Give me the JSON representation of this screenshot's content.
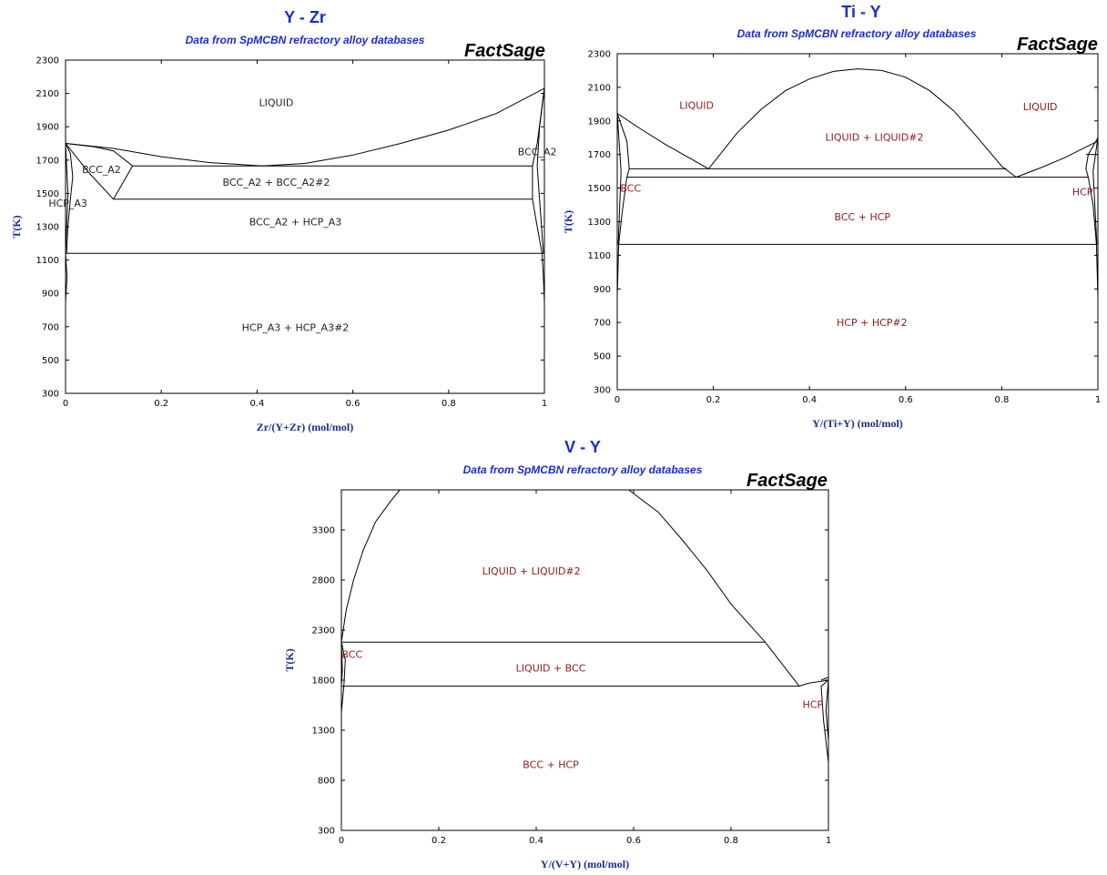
{
  "colors": {
    "title": "#1a2ccc",
    "axis_label": "#1a2c8c",
    "region_dark": "#222222",
    "region_red": "#8b1a1a"
  },
  "chart_data": [
    {
      "type": "phase-diagram",
      "title": "Y - Zr",
      "subtitle": "Data from SpMCBN refractory alloy databases",
      "brand": "FactSage",
      "xlabel": "Zr/(Y+Zr) (mol/mol)",
      "ylabel": "T(K)",
      "xlim": [
        0,
        1
      ],
      "ylim": [
        300,
        2300
      ],
      "xticks": [
        0,
        0.2,
        0.4,
        0.6,
        0.8,
        1
      ],
      "xtick_labels": [
        "0",
        "0.2",
        "0.4",
        "0.6",
        "0.8",
        "1"
      ],
      "yticks": [
        300,
        500,
        700,
        900,
        1100,
        1300,
        1500,
        1700,
        1900,
        2100,
        2300
      ],
      "regions": [
        {
          "label": "LIQUID",
          "x": 0.44,
          "y": 2045,
          "color": "#222222"
        },
        {
          "label": "BCC_A2",
          "x": 0.075,
          "y": 1645,
          "color": "#222222"
        },
        {
          "label": "BCC_A2",
          "x": 0.985,
          "y": 1750,
          "color": "#222222"
        },
        {
          "label": "BCC_A2 + BCC_A2#2",
          "x": 0.44,
          "y": 1568,
          "color": "#222222"
        },
        {
          "label": "HCP_A3",
          "x": 0.005,
          "y": 1442,
          "color": "#222222"
        },
        {
          "label": "BCC_A2 + HCP_A3",
          "x": 0.48,
          "y": 1330,
          "color": "#222222"
        },
        {
          "label": "HCP_A3 + HCP_A3#2",
          "x": 0.48,
          "y": 695,
          "color": "#222222"
        }
      ],
      "boundaries": [
        [
          [
            0,
            1800
          ],
          [
            0.1,
            1770
          ],
          [
            0.2,
            1720
          ],
          [
            0.3,
            1685
          ],
          [
            0.41,
            1665
          ],
          [
            0.5,
            1680
          ],
          [
            0.6,
            1730
          ],
          [
            0.7,
            1800
          ],
          [
            0.8,
            1880
          ],
          [
            0.9,
            1980
          ],
          [
            1,
            2130
          ]
        ],
        [
          [
            0,
            1800
          ],
          [
            0.06,
            1780
          ],
          [
            0.1,
            1755
          ],
          [
            0.14,
            1665
          ]
        ],
        [
          [
            0,
            1800
          ],
          [
            0.05,
            1620
          ],
          [
            0.1,
            1465
          ]
        ],
        [
          [
            0.1,
            1465
          ],
          [
            0.125,
            1590
          ],
          [
            0.14,
            1665
          ]
        ],
        [
          [
            0,
            1800
          ],
          [
            0.01,
            1740
          ],
          [
            0.015,
            1600
          ],
          [
            0.01,
            1465
          ],
          [
            0.005,
            1300
          ],
          [
            0.002,
            1140
          ]
        ],
        [
          [
            0,
            1800
          ],
          [
            0.005,
            1500
          ],
          [
            0,
            1140
          ]
        ],
        [
          [
            0,
            1140
          ],
          [
            0.003,
            1000
          ],
          [
            0,
            850
          ]
        ],
        [
          [
            1,
            2130
          ],
          [
            0.985,
            1800
          ],
          [
            0.975,
            1665
          ],
          [
            0.975,
            1465
          ],
          [
            0.985,
            1300
          ],
          [
            0.995,
            1140
          ]
        ],
        [
          [
            1,
            2130
          ],
          [
            0.99,
            1900
          ],
          [
            0.985,
            1665
          ],
          [
            0.99,
            1465
          ],
          [
            0.998,
            1140
          ]
        ],
        [
          [
            0.995,
            1140
          ],
          [
            0.998,
            1000
          ],
          [
            1,
            850
          ]
        ],
        [
          [
            0.14,
            1665
          ],
          [
            0.975,
            1665
          ]
        ],
        [
          [
            0.1,
            1465
          ],
          [
            0.975,
            1465
          ]
        ],
        [
          [
            0,
            1140
          ],
          [
            1,
            1140
          ]
        ]
      ]
    },
    {
      "type": "phase-diagram",
      "title": "Ti - Y",
      "subtitle": "Data from SpMCBN refractory alloy databases",
      "brand": "FactSage",
      "xlabel": "Y/(Ti+Y) (mol/mol)",
      "ylabel": "T(K)",
      "xlim": [
        0,
        1
      ],
      "ylim": [
        300,
        2300
      ],
      "xticks": [
        0,
        0.2,
        0.4,
        0.6,
        0.8,
        1
      ],
      "xtick_labels": [
        "0",
        "0.2",
        "0.4",
        "0.6",
        "0.8",
        "1"
      ],
      "yticks": [
        300,
        500,
        700,
        900,
        1100,
        1300,
        1500,
        1700,
        1900,
        2100,
        2300
      ],
      "regions": [
        {
          "label": "LIQUID",
          "x": 0.165,
          "y": 1995,
          "color": "#8b1a1a"
        },
        {
          "label": "LIQUID",
          "x": 0.88,
          "y": 1985,
          "color": "#8b1a1a"
        },
        {
          "label": "LIQUID + LIQUID#2",
          "x": 0.535,
          "y": 1805,
          "color": "#8b1a1a"
        },
        {
          "label": "BCC",
          "x": 0.028,
          "y": 1500,
          "color": "#8b1a1a"
        },
        {
          "label": "HCP",
          "x": 0.968,
          "y": 1480,
          "color": "#8b1a1a"
        },
        {
          "label": "BCC + HCP",
          "x": 0.51,
          "y": 1330,
          "color": "#8b1a1a"
        },
        {
          "label": "HCP + HCP#2",
          "x": 0.53,
          "y": 700,
          "color": "#8b1a1a"
        }
      ],
      "boundaries": [
        [
          [
            0,
            1945
          ],
          [
            0.05,
            1850
          ],
          [
            0.1,
            1760
          ],
          [
            0.15,
            1680
          ],
          [
            0.19,
            1615
          ]
        ],
        [
          [
            0.19,
            1615
          ],
          [
            0.25,
            1830
          ],
          [
            0.3,
            1970
          ],
          [
            0.35,
            2080
          ],
          [
            0.4,
            2150
          ],
          [
            0.45,
            2195
          ],
          [
            0.5,
            2210
          ],
          [
            0.55,
            2200
          ],
          [
            0.6,
            2160
          ],
          [
            0.65,
            2080
          ],
          [
            0.7,
            1960
          ],
          [
            0.75,
            1800
          ],
          [
            0.8,
            1630
          ],
          [
            0.83,
            1565
          ]
        ],
        [
          [
            0.83,
            1565
          ],
          [
            0.88,
            1620
          ],
          [
            0.93,
            1680
          ],
          [
            1,
            1780
          ]
        ],
        [
          [
            0,
            1945
          ],
          [
            0.02,
            1780
          ],
          [
            0.025,
            1615
          ],
          [
            0.02,
            1565
          ],
          [
            0.01,
            1350
          ],
          [
            0.003,
            1165
          ],
          [
            0,
            850
          ]
        ],
        [
          [
            0,
            1945
          ],
          [
            0.008,
            1600
          ],
          [
            0.002,
            1165
          ]
        ],
        [
          [
            1,
            1800
          ],
          [
            0.98,
            1700
          ],
          [
            0.975,
            1615
          ],
          [
            0.98,
            1565
          ],
          [
            0.99,
            1400
          ],
          [
            0.997,
            1165
          ],
          [
            1,
            850
          ]
        ],
        [
          [
            1,
            1800
          ],
          [
            0.99,
            1600
          ],
          [
            0.998,
            1165
          ]
        ],
        [
          [
            0.975,
            1700
          ],
          [
            1,
            1700
          ]
        ],
        [
          [
            0.025,
            1615
          ],
          [
            0.81,
            1615
          ]
        ],
        [
          [
            0.02,
            1565
          ],
          [
            0.98,
            1565
          ]
        ],
        [
          [
            0,
            1165
          ],
          [
            1,
            1165
          ]
        ]
      ]
    },
    {
      "type": "phase-diagram",
      "title": "V - Y",
      "subtitle": "Data from SpMCBN refractory alloy databases",
      "brand": "FactSage",
      "xlabel": "Y/(V+Y) (mol/mol)",
      "ylabel": "T(K)",
      "xlim": [
        0,
        1
      ],
      "ylim": [
        300,
        3700
      ],
      "xticks": [
        0,
        0.2,
        0.4,
        0.6,
        0.8,
        1
      ],
      "xtick_labels": [
        "0",
        "0.2",
        "0.4",
        "0.6",
        "0.8",
        "1"
      ],
      "yticks": [
        300,
        800,
        1300,
        1800,
        2300,
        2800,
        3300
      ],
      "regions": [
        {
          "label": "LIQUID + LIQUID#2",
          "x": 0.39,
          "y": 2890,
          "color": "#8b1a1a"
        },
        {
          "label": "BCC",
          "x": 0.022,
          "y": 2060,
          "color": "#8b1a1a"
        },
        {
          "label": "LIQUID + BCC",
          "x": 0.43,
          "y": 1925,
          "color": "#8b1a1a"
        },
        {
          "label": "HCP",
          "x": 0.968,
          "y": 1560,
          "color": "#8b1a1a"
        },
        {
          "label": "BCC + HCP",
          "x": 0.43,
          "y": 960,
          "color": "#8b1a1a"
        }
      ],
      "boundaries": [
        [
          [
            0,
            2180
          ],
          [
            0.01,
            2500
          ],
          [
            0.025,
            2800
          ],
          [
            0.045,
            3100
          ],
          [
            0.07,
            3380
          ],
          [
            0.1,
            3580
          ],
          [
            0.12,
            3700
          ]
        ],
        [
          [
            0.59,
            3700
          ],
          [
            0.65,
            3480
          ],
          [
            0.7,
            3200
          ],
          [
            0.75,
            2900
          ],
          [
            0.8,
            2560
          ],
          [
            0.87,
            2180
          ],
          [
            0.94,
            1740
          ]
        ],
        [
          [
            0,
            2180
          ],
          [
            0.87,
            2180
          ]
        ],
        [
          [
            0,
            1740
          ],
          [
            0.94,
            1740
          ]
        ],
        [
          [
            0.94,
            1740
          ],
          [
            0.96,
            1770
          ],
          [
            1,
            1800
          ]
        ],
        [
          [
            0,
            2180
          ],
          [
            0.008,
            2000
          ],
          [
            0.005,
            1740
          ],
          [
            0,
            1480
          ]
        ],
        [
          [
            0,
            2180
          ],
          [
            0.002,
            1900
          ],
          [
            0,
            1740
          ]
        ],
        [
          [
            1,
            1800
          ],
          [
            0.985,
            1740
          ],
          [
            0.99,
            1400
          ],
          [
            1,
            980
          ]
        ],
        [
          [
            1,
            1800
          ],
          [
            0.995,
            1500
          ],
          [
            1,
            1200
          ]
        ],
        [
          [
            0.985,
            1800
          ],
          [
            1,
            1830
          ]
        ]
      ]
    }
  ]
}
